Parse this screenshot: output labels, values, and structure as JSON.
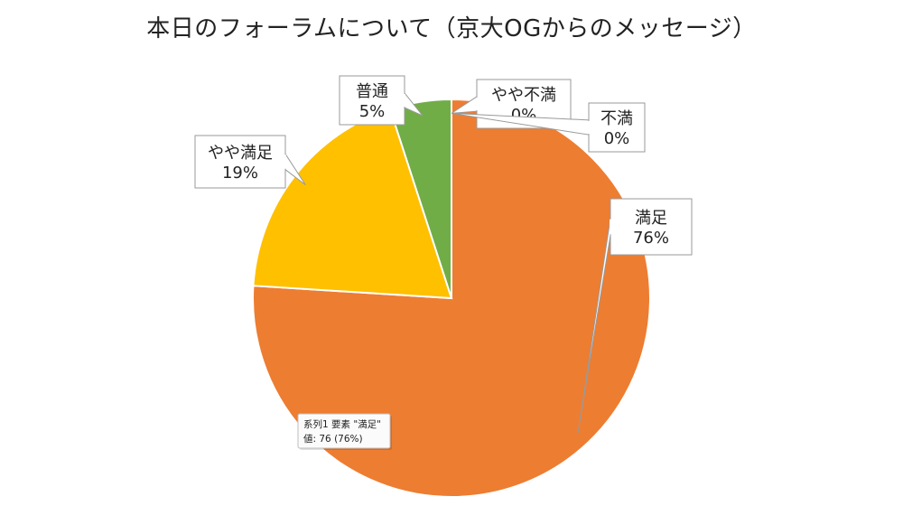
{
  "chart_data": {
    "type": "pie",
    "title": "本日のフォーラムについて（京大OGからのメッセージ）",
    "categories": [
      "満足",
      "やや満足",
      "普通",
      "やや不満",
      "不満"
    ],
    "values": [
      76,
      19,
      5,
      0,
      0
    ],
    "percent_labels": [
      "76%",
      "19%",
      "5%",
      "0%",
      "0%"
    ],
    "colors": [
      "#ED7D31",
      "#FFC000",
      "#70AD47",
      "#5B9BD5",
      "#4472C4"
    ],
    "start_angle_deg": 0,
    "direction": "clockwise",
    "legend": "none",
    "tooltip": {
      "line1": "系列1 要素 \"満足\"",
      "line2": "値: 76 (76%)"
    }
  }
}
